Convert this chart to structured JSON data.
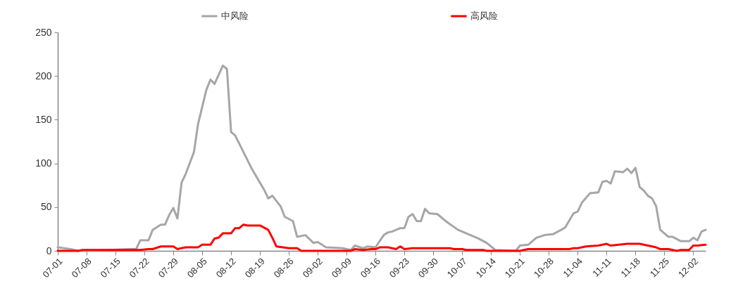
{
  "chart_data": {
    "type": "line",
    "legend": "top",
    "line_style": "solid",
    "grid": false,
    "xlim": [
      "--07-01",
      "--12-05"
    ],
    "xticks": [
      {
        "value": "--07-01",
        "label": "07-01"
      },
      {
        "value": "--07-08",
        "label": "07-08"
      },
      {
        "value": "--07-15",
        "label": "07-15"
      },
      {
        "value": "--07-22",
        "label": "07-22"
      },
      {
        "value": "--07-29",
        "label": "07-29"
      },
      {
        "value": "--08-05",
        "label": "08-05"
      },
      {
        "value": "--08-12",
        "label": "08-12"
      },
      {
        "value": "--08-19",
        "label": "08-19"
      },
      {
        "value": "--08-26",
        "label": "08-26"
      },
      {
        "value": "--09-02",
        "label": "09-02"
      },
      {
        "value": "--09-09",
        "label": "09-09"
      },
      {
        "value": "--09-16",
        "label": "09-16"
      },
      {
        "value": "--09-23",
        "label": "09-23"
      },
      {
        "value": "--09-30",
        "label": "09-30"
      },
      {
        "value": "--10-07",
        "label": "10-07"
      },
      {
        "value": "--10-14",
        "label": "10-14"
      },
      {
        "value": "--10-21",
        "label": "10-21"
      },
      {
        "value": "--10-28",
        "label": "10-28"
      },
      {
        "value": "--11-04",
        "label": "11-04"
      },
      {
        "value": "--11-11",
        "label": "11-11"
      },
      {
        "value": "--11-18",
        "label": "11-18"
      },
      {
        "value": "--11-25",
        "label": "11-25"
      },
      {
        "value": "--12-02",
        "label": "12-02"
      }
    ],
    "ylim": [
      0,
      250
    ],
    "yticks": [
      0,
      50,
      100,
      150,
      200,
      250
    ],
    "series": [
      {
        "name": "中风险",
        "color": "#a6a6a6",
        "x": [
          "--07-01",
          "--07-04",
          "--07-06",
          "--07-13",
          "--07-19",
          "--07-20",
          "--07-21",
          "--07-23",
          "--07-24",
          "--07-26",
          "--07-27",
          "--07-28",
          "--07-29",
          "--07-30",
          "--07-31",
          "--08-01",
          "--08-03",
          "--08-04",
          "--08-06",
          "--08-07",
          "--08-08",
          "--08-10",
          "--08-11",
          "--08-12",
          "--08-13",
          "--08-15",
          "--08-17",
          "--08-19",
          "--08-20",
          "--08-21",
          "--08-22",
          "--08-24",
          "--08-25",
          "--08-27",
          "--08-28",
          "--08-30",
          "--09-01",
          "--09-02",
          "--09-04",
          "--09-08",
          "--09-10",
          "--09-11",
          "--09-13",
          "--09-14",
          "--09-16",
          "--09-18",
          "--09-19",
          "--09-20",
          "--09-22",
          "--09-23",
          "--09-24",
          "--09-25",
          "--09-26",
          "--09-27",
          "--09-28",
          "--09-29",
          "--10-01",
          "--10-03",
          "--10-06",
          "--10-07",
          "--10-09",
          "--10-11",
          "--10-13",
          "--10-15",
          "--10-20",
          "--10-21",
          "--10-23",
          "--10-25",
          "--10-27",
          "--10-29",
          "--10-31",
          "--11-01",
          "--11-03",
          "--11-04",
          "--11-05",
          "--11-07",
          "--11-09",
          "--11-10",
          "--11-11",
          "--11-12",
          "--11-13",
          "--11-15",
          "--11-16",
          "--11-17",
          "--11-18",
          "--11-19",
          "--11-20",
          "--11-21",
          "--11-22",
          "--11-23",
          "--11-24",
          "--11-26",
          "--11-27",
          "--11-29",
          "--12-01",
          "--12-02",
          "--12-03",
          "--12-04",
          "--12-05"
        ],
        "values": [
          4,
          2,
          0,
          1,
          2,
          2,
          12,
          12,
          24,
          30,
          30,
          41,
          49,
          37,
          78,
          88,
          113,
          145,
          184,
          196,
          191,
          212,
          208,
          136,
          132,
          113,
          94,
          78,
          70,
          60,
          63,
          51,
          39,
          34,
          16,
          18,
          9,
          10,
          4,
          3,
          1,
          6,
          3,
          5,
          4,
          18,
          21,
          22,
          26,
          26,
          39,
          42,
          34,
          34,
          48,
          43,
          42,
          34,
          24,
          22,
          18,
          14,
          9,
          1,
          0,
          6,
          7,
          15,
          18,
          19,
          24,
          27,
          43,
          45,
          55,
          66,
          67,
          79,
          80,
          77,
          91,
          90,
          94,
          89,
          95,
          73,
          69,
          63,
          60,
          51,
          24,
          16,
          16,
          11,
          11,
          15,
          12,
          22,
          24
        ]
      },
      {
        "name": "高风险",
        "color": "#ff0000",
        "x": [
          "--07-01",
          "--07-06",
          "--07-07",
          "--07-21",
          "--07-23",
          "--07-24",
          "--07-26",
          "--07-29",
          "--07-30",
          "--08-01",
          "--08-04",
          "--08-05",
          "--08-07",
          "--08-08",
          "--08-09",
          "--08-10",
          "--08-12",
          "--08-13",
          "--08-14",
          "--08-15",
          "--08-16",
          "--08-19",
          "--08-21",
          "--08-22",
          "--08-23",
          "--08-26",
          "--08-28",
          "--08-29",
          "--09-10",
          "--09-11",
          "--09-13",
          "--09-15",
          "--09-16",
          "--09-17",
          "--09-19",
          "--09-21",
          "--09-22",
          "--09-23",
          "--09-25",
          "--10-04",
          "--10-05",
          "--10-07",
          "--10-08",
          "--10-12",
          "--10-13",
          "--10-21",
          "--10-23",
          "--11-02",
          "--11-03",
          "--11-04",
          "--11-06",
          "--11-09",
          "--11-11",
          "--11-12",
          "--11-14",
          "--11-16",
          "--11-19",
          "--11-20",
          "--11-21",
          "--11-23",
          "--11-24",
          "--11-26",
          "--11-28",
          "--11-29",
          "--12-01",
          "--12-02",
          "--12-03",
          "--12-05"
        ],
        "values": [
          0,
          0,
          1,
          1,
          2,
          2,
          5,
          5,
          2,
          4,
          4,
          7,
          7,
          14,
          15,
          20,
          20,
          26,
          26,
          30,
          29,
          29,
          24,
          15,
          5,
          3,
          3,
          0,
          0,
          2,
          1,
          2,
          2,
          4,
          4,
          2,
          5,
          2,
          3,
          3,
          2,
          2,
          1,
          1,
          0,
          0,
          2,
          2,
          3,
          3,
          5,
          6,
          8,
          6,
          7,
          8,
          8,
          7,
          6,
          4,
          2,
          2,
          0,
          1,
          1,
          6,
          6,
          7
        ]
      }
    ]
  }
}
